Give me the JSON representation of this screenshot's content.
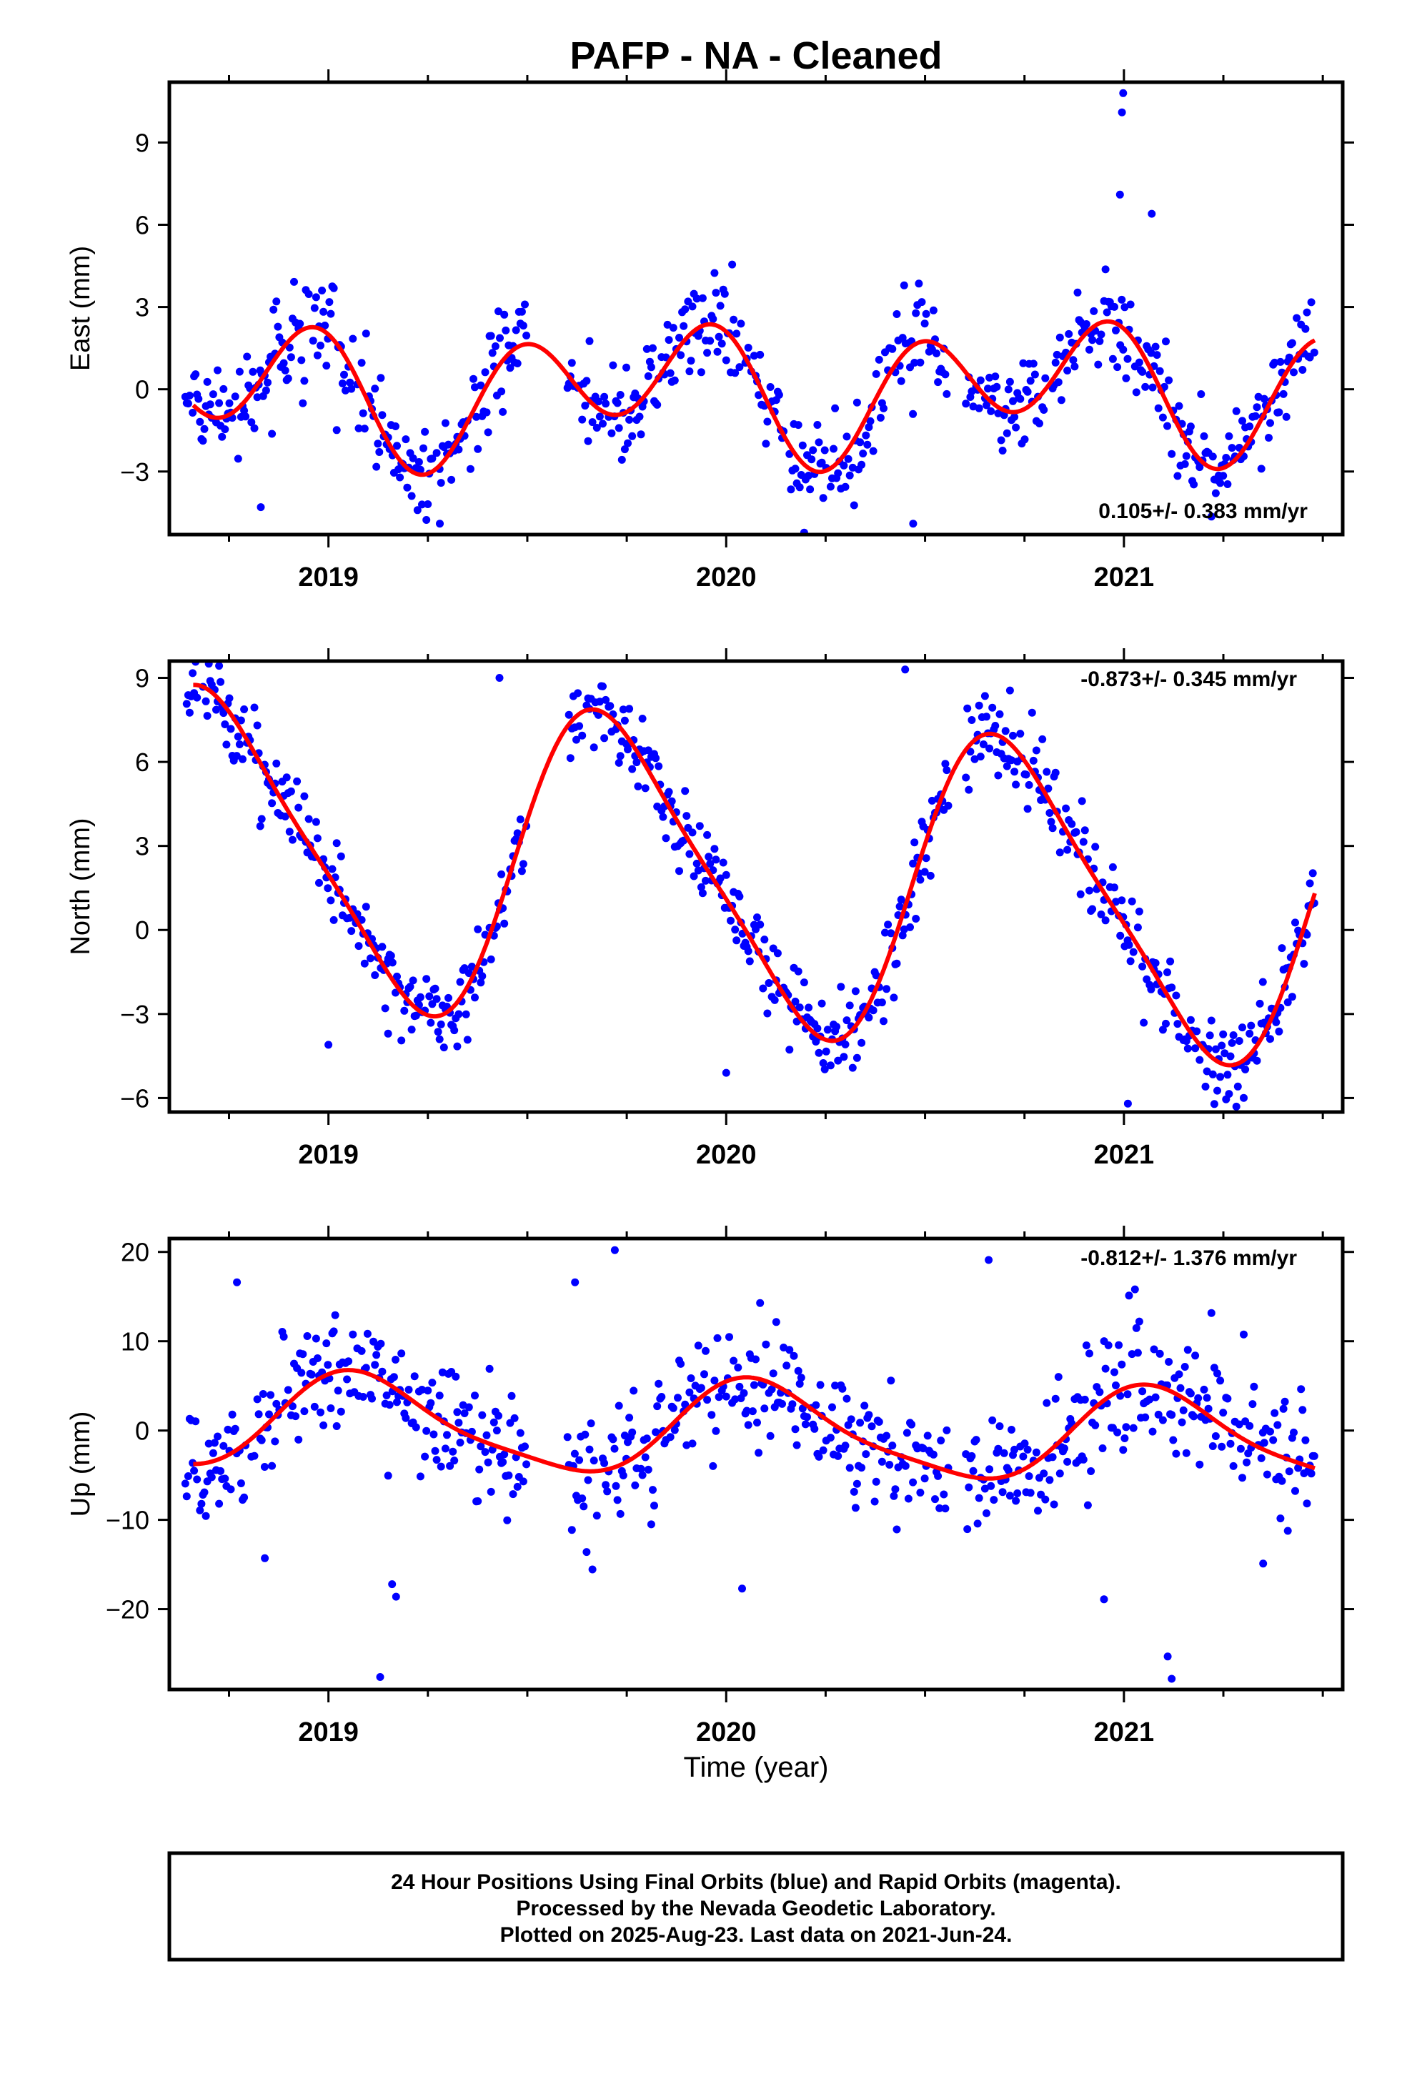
{
  "title": "PAFP  - NA - Cleaned",
  "x_axis_label": "Time (year)",
  "footer": {
    "line1": "24 Hour Positions Using Final Orbits (blue) and Rapid Orbits (magenta).",
    "line2": "Processed by the Nevada Geodetic Laboratory.",
    "line3": "Plotted on 2025-Aug-23. Last data on 2021-Jun-24."
  },
  "colors": {
    "points": "#0000ff",
    "fit": "#ff0000",
    "frame": "#000000"
  },
  "chart_data": [
    {
      "type": "scatter",
      "name": "east",
      "ylabel": "East (mm)",
      "rate_label": "0.105+/- 0.383 mm/yr",
      "xlim": [
        2018.6,
        2021.55
      ],
      "ylim": [
        -5.3,
        11.2
      ],
      "yticks": [
        -3,
        0,
        3,
        6,
        9
      ],
      "ytick_labels": [
        "−3",
        "0",
        "3",
        "6",
        "9"
      ],
      "xticks": [
        2019,
        2020,
        2021
      ],
      "xtick_labels": [
        "2019",
        "2020",
        "2021"
      ],
      "model": {
        "mean": 0.0,
        "trend": 0.105,
        "a1": -1.1,
        "b1": 0.2,
        "a2": -0.5,
        "b2": 1.9,
        "ref": 2020.0
      },
      "noise_sd": 0.9,
      "outliers": [
        [
          2020.998,
          10.8
        ],
        [
          2020.995,
          10.1
        ],
        [
          2020.99,
          7.1
        ],
        [
          2021.07,
          6.4
        ],
        [
          2018.83,
          -4.3
        ],
        [
          2019.28,
          -4.9
        ],
        [
          2020.47,
          -4.9
        ]
      ]
    },
    {
      "type": "scatter",
      "name": "north",
      "ylabel": "North (mm)",
      "rate_label": "-0.873+/- 0.345 mm/yr",
      "xlim": [
        2018.6,
        2021.55
      ],
      "ylim": [
        -6.5,
        9.6
      ],
      "yticks": [
        -6,
        -3,
        0,
        3,
        6,
        9
      ],
      "ytick_labels": [
        "−6",
        "−3",
        "0",
        "3",
        "6",
        "9"
      ],
      "xticks": [
        2019,
        2020,
        2021
      ],
      "xtick_labels": [
        "2019",
        "2020",
        "2021"
      ],
      "model": {
        "mean": 1.9,
        "trend": -0.873,
        "a1": -5.2,
        "b1": -1.2,
        "a2": 0.9,
        "b2": 0.4,
        "ref": 2020.0
      },
      "noise_sd": 0.75,
      "outliers": [
        [
          2021.01,
          -6.2
        ],
        [
          2019.0,
          -4.1
        ],
        [
          2019.15,
          -3.7
        ],
        [
          2020.45,
          9.3
        ],
        [
          2019.43,
          9.0
        ],
        [
          2020.0,
          -5.1
        ]
      ]
    },
    {
      "type": "scatter",
      "name": "up",
      "ylabel": "Up (mm)",
      "rate_label": "-0.812+/- 1.376 mm/yr",
      "xlim": [
        2018.6,
        2021.55
      ],
      "ylim": [
        -29,
        21.5
      ],
      "yticks": [
        -20,
        -10,
        0,
        10,
        20
      ],
      "ytick_labels": [
        "−20",
        "−10",
        "0",
        "10",
        "20"
      ],
      "xticks": [
        2019,
        2020,
        2021
      ],
      "xtick_labels": [
        "2019",
        "2020",
        "2021"
      ],
      "model": {
        "mean": 0.0,
        "trend": -0.812,
        "a1": 2.6,
        "b1": 4.4,
        "a2": 0.2,
        "b2": 1.1,
        "ref": 2020.0
      },
      "noise_sd": 3.6,
      "outliers": [
        [
          2019.13,
          -27.6
        ],
        [
          2021.12,
          -27.8
        ],
        [
          2021.11,
          -25.3
        ],
        [
          2019.17,
          -18.6
        ],
        [
          2019.16,
          -17.2
        ],
        [
          2019.72,
          20.2
        ],
        [
          2020.66,
          19.1
        ],
        [
          2018.77,
          16.6
        ],
        [
          2019.62,
          16.6
        ],
        [
          2020.95,
          -18.9
        ],
        [
          2020.04,
          -17.7
        ],
        [
          2018.84,
          -14.3
        ],
        [
          2021.35,
          -14.9
        ]
      ]
    }
  ]
}
